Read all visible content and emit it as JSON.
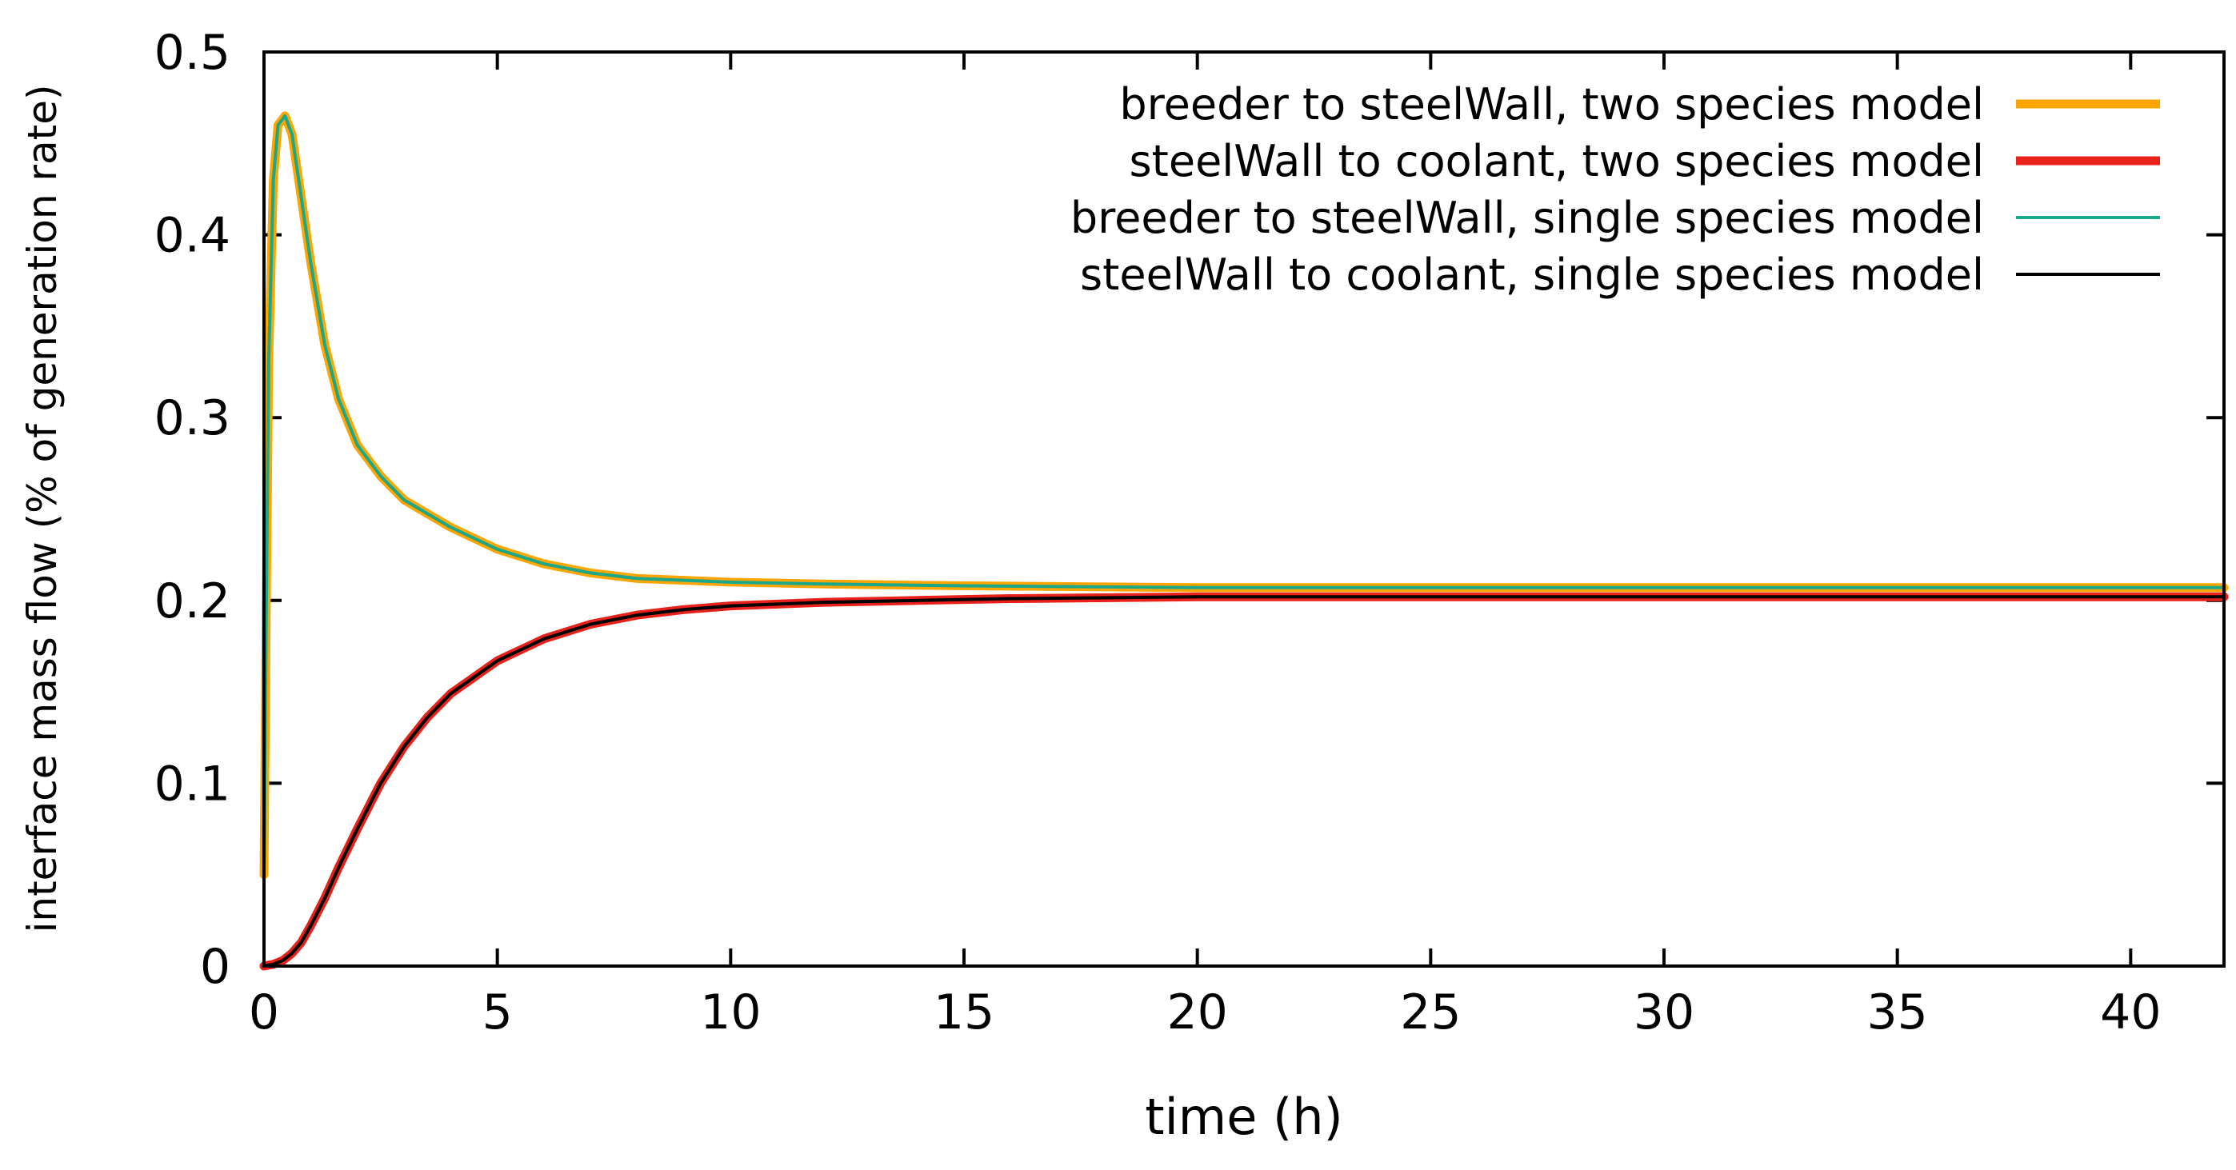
{
  "chart_data": {
    "type": "line",
    "title": "",
    "xlabel": "time (h)",
    "ylabel": "interface mass flow (% of generation rate)",
    "xlim": [
      0,
      42
    ],
    "ylim": [
      0,
      0.5
    ],
    "xticks": [
      0,
      5,
      10,
      15,
      20,
      25,
      30,
      35,
      40
    ],
    "yticks": [
      0,
      0.1,
      0.2,
      0.3,
      0.4,
      0.5
    ],
    "xtick_labels": [
      "0",
      "5",
      "10",
      "15",
      "20",
      "25",
      "30",
      "35",
      "40"
    ],
    "ytick_labels": [
      "0",
      "0.1",
      "0.2",
      "0.3",
      "0.4",
      "0.5"
    ],
    "grid": false,
    "legend_position": "top-right",
    "series": [
      {
        "name": "breeder to steelWall, two species model",
        "color": "#FFA500",
        "style": "thick",
        "x": [
          0,
          0.05,
          0.1,
          0.2,
          0.3,
          0.45,
          0.6,
          0.8,
          1.0,
          1.3,
          1.6,
          2,
          2.5,
          3,
          4,
          5,
          6,
          7,
          8,
          10,
          12,
          15,
          20,
          25,
          30,
          35,
          40,
          42
        ],
        "y": [
          0.05,
          0.2,
          0.33,
          0.43,
          0.46,
          0.465,
          0.455,
          0.42,
          0.385,
          0.34,
          0.31,
          0.285,
          0.268,
          0.255,
          0.24,
          0.228,
          0.22,
          0.215,
          0.212,
          0.21,
          0.209,
          0.208,
          0.207,
          0.207,
          0.207,
          0.207,
          0.207,
          0.207
        ]
      },
      {
        "name": "steelWall to coolant, two species model",
        "color": "#E8211A",
        "style": "thick",
        "x": [
          0,
          0.2,
          0.4,
          0.6,
          0.8,
          1.0,
          1.3,
          1.6,
          2,
          2.5,
          3,
          3.5,
          4,
          5,
          6,
          7,
          8,
          9,
          10,
          12,
          14,
          16,
          20,
          25,
          30,
          35,
          40,
          42
        ],
        "y": [
          0,
          0.001,
          0.003,
          0.007,
          0.013,
          0.022,
          0.037,
          0.054,
          0.075,
          0.1,
          0.12,
          0.136,
          0.149,
          0.167,
          0.179,
          0.187,
          0.192,
          0.195,
          0.197,
          0.199,
          0.2,
          0.201,
          0.202,
          0.202,
          0.202,
          0.202,
          0.202,
          0.202
        ]
      },
      {
        "name": "breeder to steelWall, single species model",
        "color": "#1BA88A",
        "style": "thin",
        "x": [
          0,
          0.05,
          0.1,
          0.2,
          0.3,
          0.45,
          0.6,
          0.8,
          1.0,
          1.3,
          1.6,
          2,
          2.5,
          3,
          4,
          5,
          6,
          7,
          8,
          10,
          12,
          15,
          20,
          25,
          30,
          35,
          40,
          42
        ],
        "y": [
          0.05,
          0.2,
          0.33,
          0.43,
          0.46,
          0.465,
          0.455,
          0.42,
          0.385,
          0.34,
          0.31,
          0.285,
          0.268,
          0.255,
          0.24,
          0.228,
          0.22,
          0.215,
          0.212,
          0.21,
          0.209,
          0.208,
          0.207,
          0.207,
          0.207,
          0.207,
          0.207,
          0.207
        ]
      },
      {
        "name": "steelWall to coolant, single species model",
        "color": "#000000",
        "style": "thin",
        "x": [
          0,
          0.2,
          0.4,
          0.6,
          0.8,
          1.0,
          1.3,
          1.6,
          2,
          2.5,
          3,
          3.5,
          4,
          5,
          6,
          7,
          8,
          9,
          10,
          12,
          14,
          16,
          20,
          25,
          30,
          35,
          40,
          42
        ],
        "y": [
          0,
          0.001,
          0.003,
          0.007,
          0.013,
          0.022,
          0.037,
          0.054,
          0.075,
          0.1,
          0.12,
          0.136,
          0.149,
          0.167,
          0.179,
          0.187,
          0.192,
          0.195,
          0.197,
          0.199,
          0.2,
          0.201,
          0.202,
          0.202,
          0.202,
          0.202,
          0.202,
          0.202
        ]
      }
    ]
  }
}
